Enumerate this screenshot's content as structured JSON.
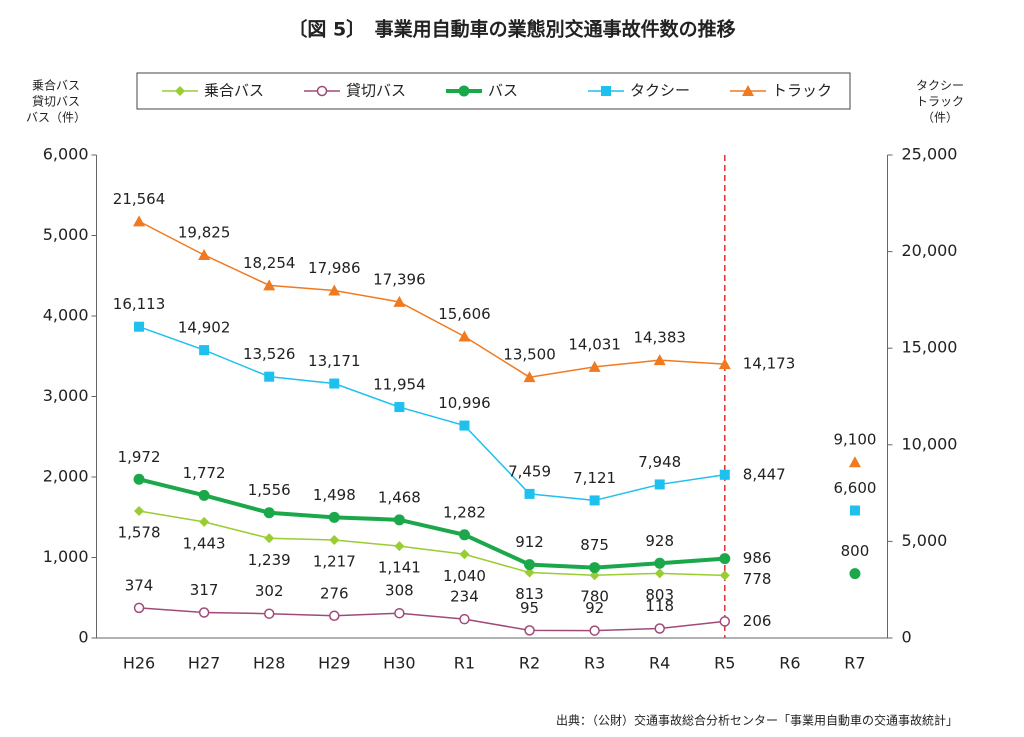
{
  "chart_data": {
    "type": "line",
    "title": "〔図 5〕　事業用自動車の業態別交通事故件数の推移",
    "y_label": [
      "乗合バス",
      "貸切バス",
      "バス（件）"
    ],
    "y2_label": [
      "タクシー",
      "トラック",
      "（件）"
    ],
    "source": "出典：（公財）交通事故総合分析センター「事業用自動車の交通事故統計」",
    "categories": [
      "H26",
      "H27",
      "H28",
      "H29",
      "H30",
      "R1",
      "R2",
      "R3",
      "R4",
      "R5",
      "R6",
      "R7"
    ],
    "ylim": [
      0,
      6000
    ],
    "yticks": [
      0,
      {
        "value": 1000,
        "label": "1,000"
      },
      {
        "value": 2000,
        "label": "2,000"
      },
      {
        "value": 3000,
        "label": "3,000"
      },
      {
        "value": 4000,
        "label": "4,000"
      },
      {
        "value": 5000,
        "label": "5,000"
      },
      {
        "value": 6000,
        "label": "6,000"
      }
    ],
    "y2lim": [
      0,
      25000
    ],
    "y2ticks": [
      0,
      {
        "value": 5000,
        "label": "5,000"
      },
      {
        "value": 10000,
        "label": "10,000"
      },
      {
        "value": 15000,
        "label": "15,000"
      },
      {
        "value": 20000,
        "label": "20,000"
      },
      {
        "value": 25000,
        "label": "25,000"
      }
    ],
    "grid": false,
    "legend": "top",
    "reference_line": {
      "x": "R5",
      "color": "#e03030",
      "style": "dashed"
    },
    "series": [
      {
        "name": "乗合バス",
        "color": "#9acd32",
        "marker": "diamond",
        "line_width": 1.5,
        "label_position": "below",
        "values": [
          1578,
          1443,
          1239,
          1217,
          1141,
          1040,
          813,
          780,
          803,
          778,
          null,
          null
        ],
        "value_labels": [
          "1,578",
          "1,443",
          "1,239",
          "1,217",
          "1,141",
          "1,040",
          "813",
          "780",
          "803",
          "778",
          null,
          null
        ]
      },
      {
        "name": "貸切バス",
        "color": "#a04a7a",
        "marker": "open-circle",
        "line_width": 1.5,
        "label_position": "above",
        "values": [
          374,
          317,
          302,
          276,
          308,
          234,
          95,
          92,
          118,
          206,
          null,
          null
        ],
        "value_labels": [
          "374",
          "317",
          "302",
          "276",
          "308",
          "234",
          "95",
          "92",
          "118",
          "206",
          null,
          null
        ]
      },
      {
        "name": "バス",
        "color": "#1aa84a",
        "marker": "circle",
        "line_width": 4,
        "label_position": "above",
        "values": [
          1972,
          1772,
          1556,
          1498,
          1468,
          1282,
          912,
          875,
          928,
          986,
          null,
          800
        ],
        "value_labels": [
          "1,972",
          "1,772",
          "1,556",
          "1,498",
          "1,468",
          "1,282",
          "912",
          "875",
          "928",
          "986",
          null,
          "800"
        ]
      },
      {
        "name": "タクシー",
        "color": "#1ec0ee",
        "marker": "square",
        "line_width": 1.5,
        "label_position": "above",
        "axis": "y2",
        "values": [
          16113,
          14902,
          13526,
          13171,
          11954,
          10996,
          7459,
          7121,
          7948,
          8447,
          null,
          6600
        ],
        "value_labels": [
          "16,113",
          "14,902",
          "13,526",
          "13,171",
          "11,954",
          "10,996",
          "7,459",
          "7,121",
          "7,948",
          "8,447",
          null,
          "6,600"
        ]
      },
      {
        "name": "トラック",
        "color": "#f07a20",
        "marker": "triangle",
        "line_width": 1.5,
        "label_position": "above",
        "axis": "y2",
        "values": [
          21564,
          19825,
          18254,
          17986,
          17396,
          15606,
          13500,
          14031,
          14383,
          14173,
          null,
          9100
        ],
        "value_labels": [
          "21,564",
          "19,825",
          "18,254",
          "17,986",
          "17,396",
          "15,606",
          "13,500",
          "14,031",
          "14,383",
          "14,173",
          null,
          "9,100"
        ]
      }
    ]
  }
}
